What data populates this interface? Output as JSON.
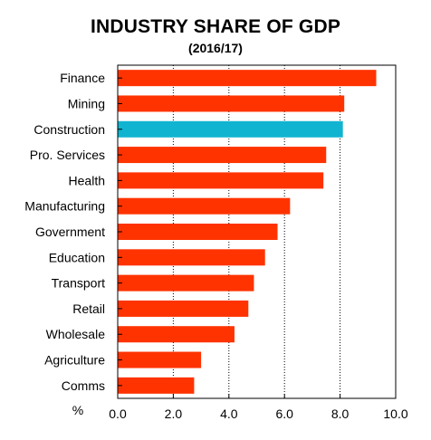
{
  "chart_data": {
    "type": "bar",
    "orientation": "horizontal",
    "title": "INDUSTRY SHARE OF GDP",
    "subtitle": "(2016/17)",
    "unit_label": "%",
    "categories": [
      "Finance",
      "Mining",
      "Construction",
      "Pro. Services",
      "Health",
      "Manufacturing",
      "Government",
      "Education",
      "Transport",
      "Retail",
      "Wholesale",
      "Agriculture",
      "Comms"
    ],
    "values": [
      9.3,
      8.15,
      8.1,
      7.5,
      7.4,
      6.2,
      5.75,
      5.3,
      4.9,
      4.7,
      4.2,
      3.0,
      2.75
    ],
    "highlight_category": "Construction",
    "colors": {
      "default": "#ff3300",
      "highlight": "#10b4d0"
    },
    "xlim": [
      0,
      10
    ],
    "x_ticks": [
      "0.0",
      "2.0",
      "4.0",
      "6.0",
      "8.0",
      "10.0"
    ],
    "grid": "vertical dotted"
  }
}
